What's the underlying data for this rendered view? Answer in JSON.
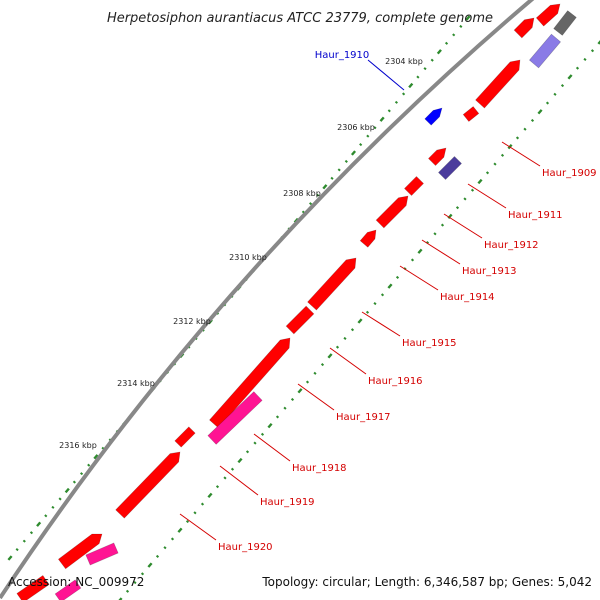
{
  "title": "Herpetosiphon aurantiacus ATCC 23779, complete genome",
  "footer": {
    "accession": "Accession: NC_009972",
    "topology": "Topology: circular; Length: 6,346,587 bp; Genes: 5,042"
  },
  "colors": {
    "cds": "#ff0000",
    "cds_dark": "#e00000",
    "blue_gene": "#0000ff",
    "purple_gene": "#4b3c9c",
    "lavender_gene": "#8a7be6",
    "pink_gene": "#ff1493",
    "gray_gene": "#666666",
    "backbone": "#888888",
    "gc_dots": "#2e8b2e",
    "label_red": "#d40000",
    "label_blue": "#0000cc"
  },
  "kbp_ticks": [
    {
      "label": "2304 kbp"
    },
    {
      "label": "2306 kbp"
    },
    {
      "label": "2308 kbp"
    },
    {
      "label": "2310 kbp"
    },
    {
      "label": "2312 kbp"
    },
    {
      "label": "2314 kbp"
    },
    {
      "label": "2316 kbp"
    }
  ],
  "genes": [
    {
      "name": "Haur_1909",
      "color": "cds"
    },
    {
      "name": "Haur_1910",
      "color": "blue_gene"
    },
    {
      "name": "Haur_1911",
      "color": "purple_gene"
    },
    {
      "name": "Haur_1912",
      "color": "cds"
    },
    {
      "name": "Haur_1913",
      "color": "cds"
    },
    {
      "name": "Haur_1914",
      "color": "cds"
    },
    {
      "name": "Haur_1915",
      "color": "cds"
    },
    {
      "name": "Haur_1916",
      "color": "cds"
    },
    {
      "name": "Haur_1917",
      "color": "cds"
    },
    {
      "name": "Haur_1918",
      "color": "pink_gene"
    },
    {
      "name": "Haur_1919",
      "color": "cds"
    },
    {
      "name": "Haur_1920",
      "color": "cds"
    }
  ]
}
